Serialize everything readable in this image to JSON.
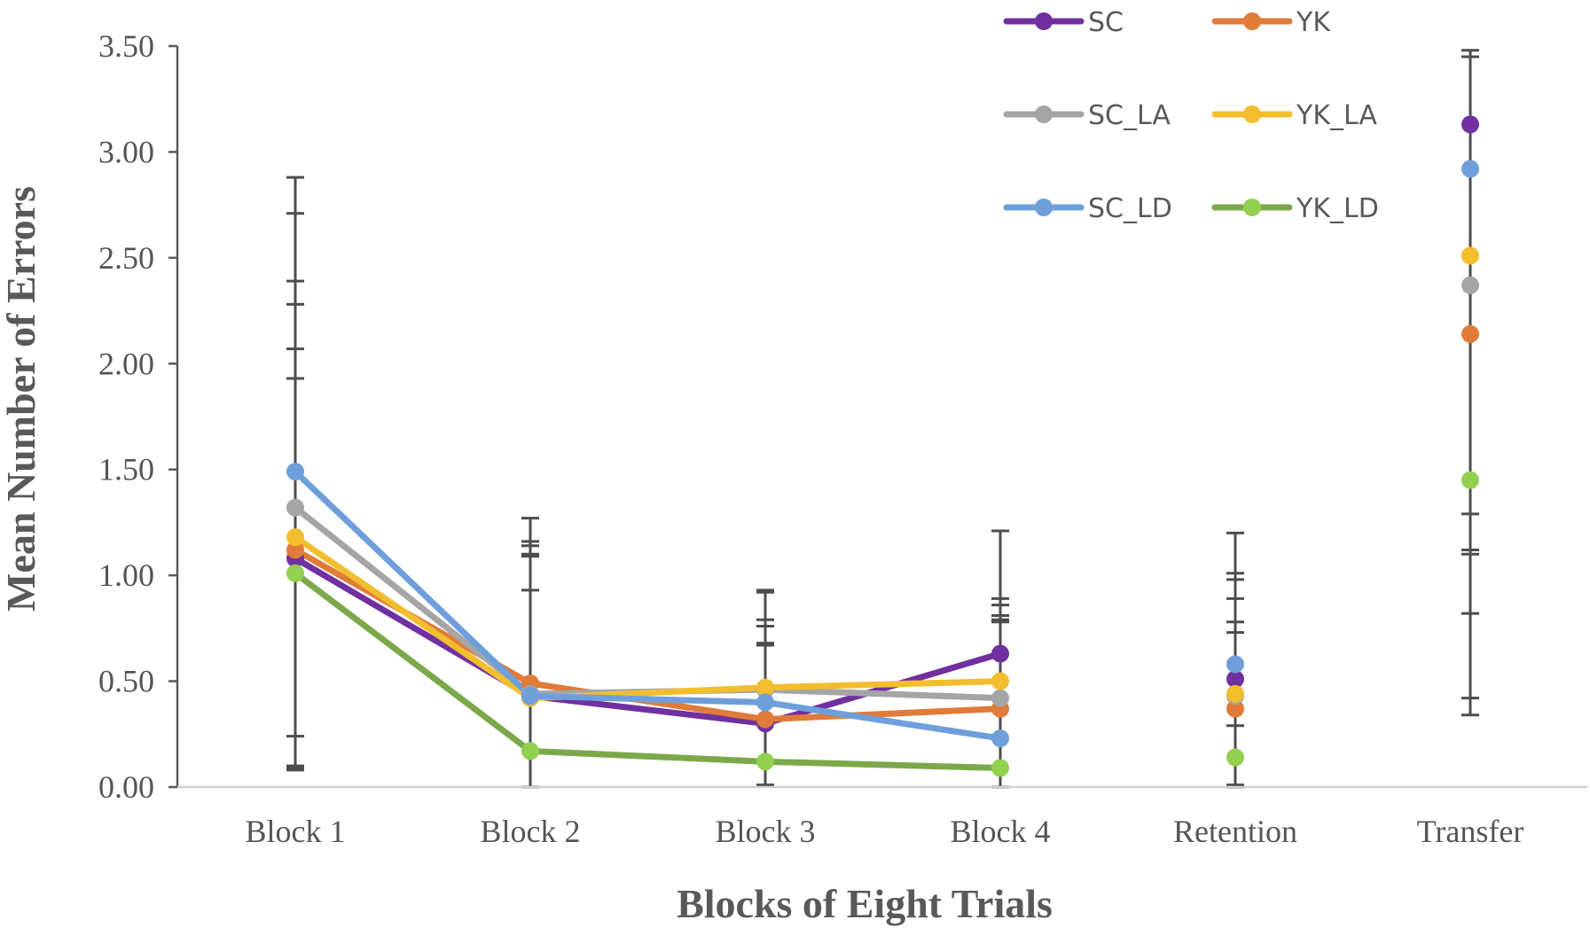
{
  "chart_data": {
    "type": "line",
    "title": "",
    "xlabel": "Blocks of Eight Trials",
    "ylabel": "Mean Number of Errors",
    "categories": [
      "Block 1",
      "Block 2",
      "Block 3",
      "Block 4",
      "Retention",
      "Transfer"
    ],
    "connected_categories": 4,
    "ylim": [
      0,
      3.5
    ],
    "yticks": [
      0,
      0.5,
      1.0,
      1.5,
      2.0,
      2.5,
      3.0,
      3.5
    ],
    "ytick_labels": [
      "0.00",
      "0.50",
      "1.00",
      "1.50",
      "2.00",
      "2.50",
      "3.00",
      "3.50"
    ],
    "grid": false,
    "legend_position": "top-right",
    "series": [
      {
        "name": "SC",
        "color": "#7030A0",
        "values": [
          1.08,
          0.43,
          0.3,
          0.63,
          0.51,
          3.13
        ]
      },
      {
        "name": "YK",
        "color": "#E07B39",
        "values": [
          1.12,
          0.49,
          0.32,
          0.37,
          0.37,
          2.14
        ]
      },
      {
        "name": "SC_LA",
        "color": "#A5A5A5",
        "values": [
          1.32,
          0.44,
          0.46,
          0.42,
          0.43,
          2.37
        ]
      },
      {
        "name": "YK_LA",
        "color": "#F2BE2E",
        "values": [
          1.18,
          0.42,
          0.47,
          0.5,
          0.44,
          2.51
        ]
      },
      {
        "name": "SC_LD",
        "color": "#6E9FDB",
        "values": [
          1.49,
          0.43,
          0.4,
          0.23,
          0.58,
          2.92
        ]
      },
      {
        "name": "YK_LD",
        "color": "#7CA84A",
        "marker_color": "#92D050",
        "values": [
          1.01,
          0.17,
          0.12,
          0.09,
          0.14,
          1.45
        ]
      }
    ],
    "error_bar_color": "#4D4D4D",
    "error_bars": [
      {
        "category": "Block 1",
        "tops": [
          2.88,
          2.71,
          2.39,
          2.28,
          2.07,
          1.93
        ],
        "bottoms": [
          0.24,
          0.1,
          0.09,
          0.08
        ]
      },
      {
        "category": "Block 2",
        "tops": [
          1.27,
          1.16,
          1.14,
          1.1,
          1.09,
          0.93
        ],
        "bottoms": [
          0.0
        ]
      },
      {
        "category": "Block 3",
        "tops": [
          0.93,
          0.92,
          0.79,
          0.76,
          0.68,
          0.67
        ],
        "bottoms": [
          0.01
        ]
      },
      {
        "category": "Block 4",
        "tops": [
          1.21,
          0.89,
          0.86,
          0.81,
          0.79,
          0.78
        ],
        "bottoms": [
          0.0
        ]
      },
      {
        "category": "Retention",
        "tops": [
          1.2,
          1.01,
          0.98,
          0.89,
          0.78,
          0.73
        ],
        "bottoms": [
          0.29,
          0.01,
          0.0
        ]
      },
      {
        "category": "Transfer",
        "tops": [
          3.48,
          3.45,
          1.29,
          1.12,
          1.1,
          0.82
        ],
        "bottoms": [
          0.42,
          0.34
        ]
      }
    ]
  }
}
